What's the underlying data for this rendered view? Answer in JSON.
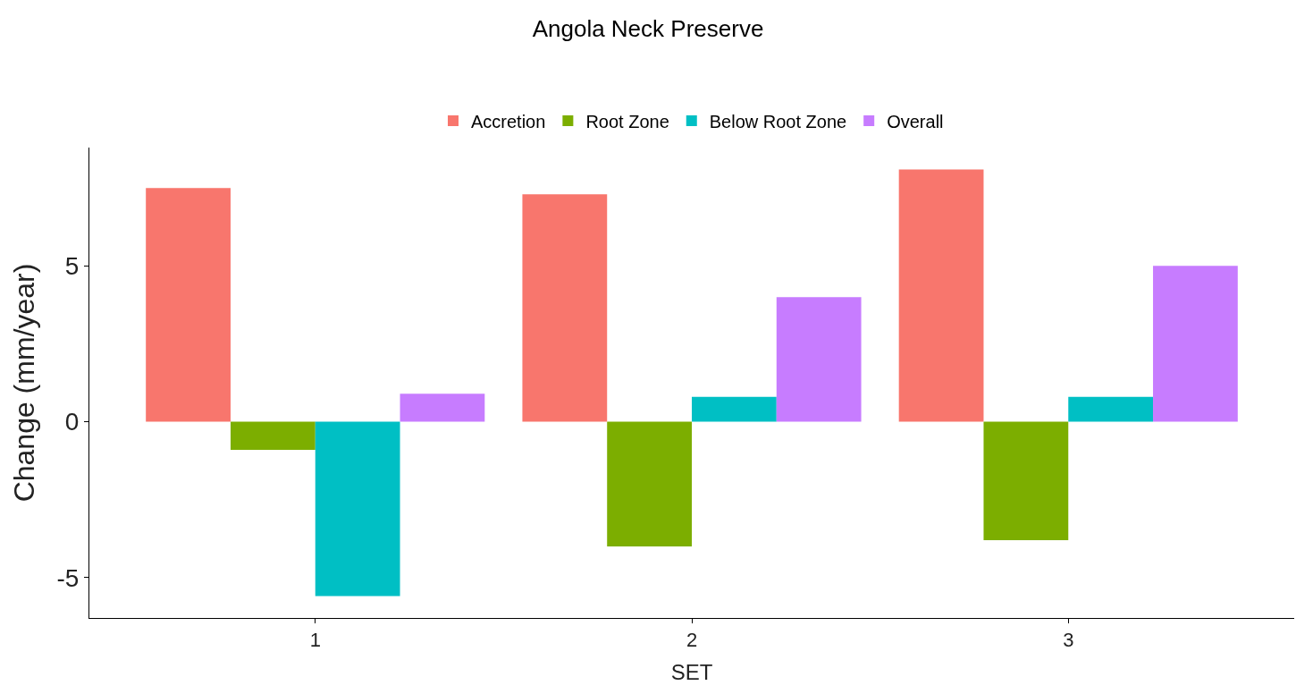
{
  "chart_data": {
    "type": "bar",
    "title": "Angola Neck Preserve",
    "xlabel": "SET",
    "ylabel": "Change (mm/year)",
    "categories": [
      "1",
      "2",
      "3"
    ],
    "series": [
      {
        "name": "Accretion",
        "color": "#f8766d",
        "values": [
          7.5,
          7.3,
          8.1
        ]
      },
      {
        "name": "Root Zone",
        "color": "#7cae00",
        "values": [
          -0.9,
          -4.0,
          -3.8
        ]
      },
      {
        "name": "Below Root Zone",
        "color": "#00bfc4",
        "values": [
          -5.6,
          0.8,
          0.8
        ]
      },
      {
        "name": "Overall",
        "color": "#c77cff",
        "values": [
          0.9,
          4.0,
          5.0
        ]
      }
    ],
    "ylim": [
      -6.3,
      8.8
    ],
    "yticks": [
      -5,
      0,
      5
    ],
    "grid": false,
    "legend": "top"
  }
}
